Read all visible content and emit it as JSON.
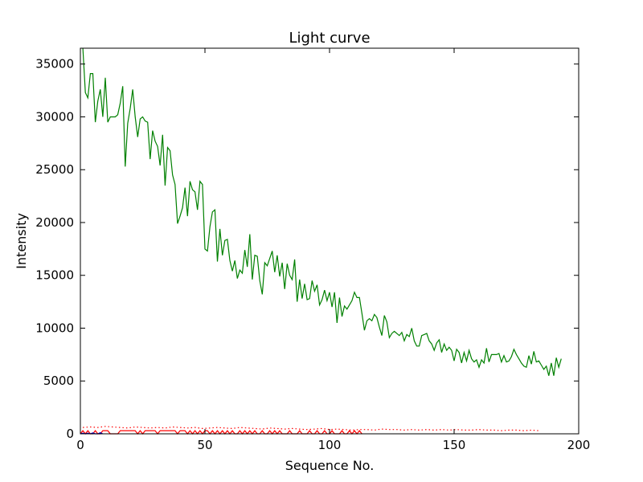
{
  "chart_data": {
    "type": "line",
    "title": "Light curve",
    "xlabel": "Sequence No.",
    "ylabel": "Intensity",
    "xlim": [
      0,
      200
    ],
    "ylim": [
      0,
      36500
    ],
    "x_ticks": [
      0,
      50,
      100,
      150,
      200
    ],
    "y_ticks": [
      0,
      5000,
      10000,
      15000,
      20000,
      25000,
      30000,
      35000
    ],
    "grid": false,
    "legend": "none",
    "series": [
      {
        "color": "#008000",
        "style": "solid",
        "x_start": 1,
        "x_step": 1,
        "values": [
          36500,
          32300,
          31800,
          34100,
          34100,
          29500,
          31500,
          32600,
          30000,
          33700,
          29500,
          30000,
          30000,
          30000,
          30200,
          31300,
          32900,
          25300,
          29400,
          30800,
          32600,
          30000,
          28100,
          29800,
          30000,
          29600,
          29500,
          26000,
          28700,
          27700,
          27200,
          25400,
          28300,
          23500,
          27100,
          26800,
          24500,
          23600,
          19900,
          20600,
          21400,
          23300,
          20600,
          23900,
          23100,
          22900,
          21200,
          23900,
          23600,
          17500,
          17300,
          19600,
          21000,
          21200,
          16300,
          19400,
          16900,
          18300,
          18400,
          16400,
          15400,
          16400,
          14700,
          15500,
          15200,
          17400,
          15800,
          18900,
          14600,
          16900,
          16800,
          14500,
          13200,
          16200,
          15900,
          16600,
          17300,
          15300,
          16900,
          14900,
          16200,
          13700,
          16100,
          15000,
          14600,
          16500,
          12500,
          14600,
          12800,
          14200,
          12700,
          12800,
          14500,
          13500,
          14100,
          12200,
          12700,
          13600,
          12600,
          13400,
          12000,
          13400,
          10500,
          12900,
          11100,
          12100,
          11800,
          12200,
          12600,
          13400,
          12900,
          12900,
          11400,
          9800,
          10700,
          10900,
          10700,
          11300,
          11000,
          10100,
          9300,
          11200,
          10600,
          9100,
          9500,
          9700,
          9500,
          9300,
          9600,
          8800,
          9400,
          9200,
          10000,
          8800,
          8300,
          8300,
          9300,
          9400,
          9500,
          8800,
          8500,
          7900,
          8600,
          8900,
          7700,
          8500,
          7900,
          8200,
          7900,
          6900,
          8000,
          7700,
          6700,
          7700,
          6900,
          7900,
          7100,
          6800,
          7000,
          6300,
          7000,
          6700,
          8100,
          6800,
          7500,
          7500,
          7500,
          7600,
          6800,
          7400,
          6800,
          6900,
          7300,
          8000,
          7500,
          7100,
          6700,
          6400,
          6300,
          7400,
          6600,
          7800,
          6800,
          6900,
          6500,
          6100,
          6400,
          5500,
          6700,
          5500,
          7200,
          6300,
          7100
        ]
      },
      {
        "color": "#ff0000",
        "style": "dotted",
        "x_start": 1,
        "x_step": 3,
        "values": [
          600,
          650,
          600,
          700,
          650,
          600,
          550,
          650,
          600,
          550,
          600,
          550,
          650,
          600,
          550,
          600,
          500,
          550,
          600,
          550,
          500,
          600,
          550,
          500,
          450,
          550,
          500,
          450,
          500,
          450,
          400,
          450,
          500,
          400,
          450,
          400,
          350,
          400,
          400,
          350,
          450,
          400,
          400,
          350,
          400,
          350,
          400,
          350,
          400,
          350,
          400,
          350,
          350,
          400,
          350,
          350,
          300,
          350,
          350,
          300,
          350,
          300
        ]
      },
      {
        "color": "#ff0000",
        "style": "solid",
        "x_start": 0,
        "x_step": 1,
        "values": [
          0,
          300,
          0,
          300,
          0,
          0,
          300,
          0,
          0,
          300,
          300,
          300,
          0,
          0,
          0,
          0,
          300,
          300,
          300,
          300,
          300,
          300,
          300,
          0,
          300,
          0,
          300,
          300,
          300,
          300,
          300,
          0,
          300,
          300,
          300,
          300,
          300,
          300,
          300,
          0,
          300,
          300,
          300,
          0,
          300,
          0,
          300,
          0,
          300,
          0,
          300,
          300,
          0,
          300,
          0,
          300,
          0,
          300,
          0,
          300,
          0,
          300,
          0,
          0,
          300,
          0,
          300,
          0,
          300,
          0,
          300,
          0,
          0,
          300,
          0,
          0,
          300,
          0,
          300,
          0,
          300,
          0,
          0,
          0,
          300,
          0,
          0,
          0,
          300,
          0,
          0,
          0,
          300,
          0,
          0,
          300,
          0,
          0,
          300,
          0,
          0,
          300,
          0,
          0,
          0,
          300,
          0,
          0,
          300,
          0,
          300,
          0,
          300,
          0
        ]
      },
      {
        "color": "#0000cc",
        "style": "solid",
        "x_start": 0,
        "x_step": 1,
        "values": [
          0,
          50,
          0,
          60,
          0,
          80,
          0,
          0,
          100,
          0
        ]
      }
    ]
  }
}
